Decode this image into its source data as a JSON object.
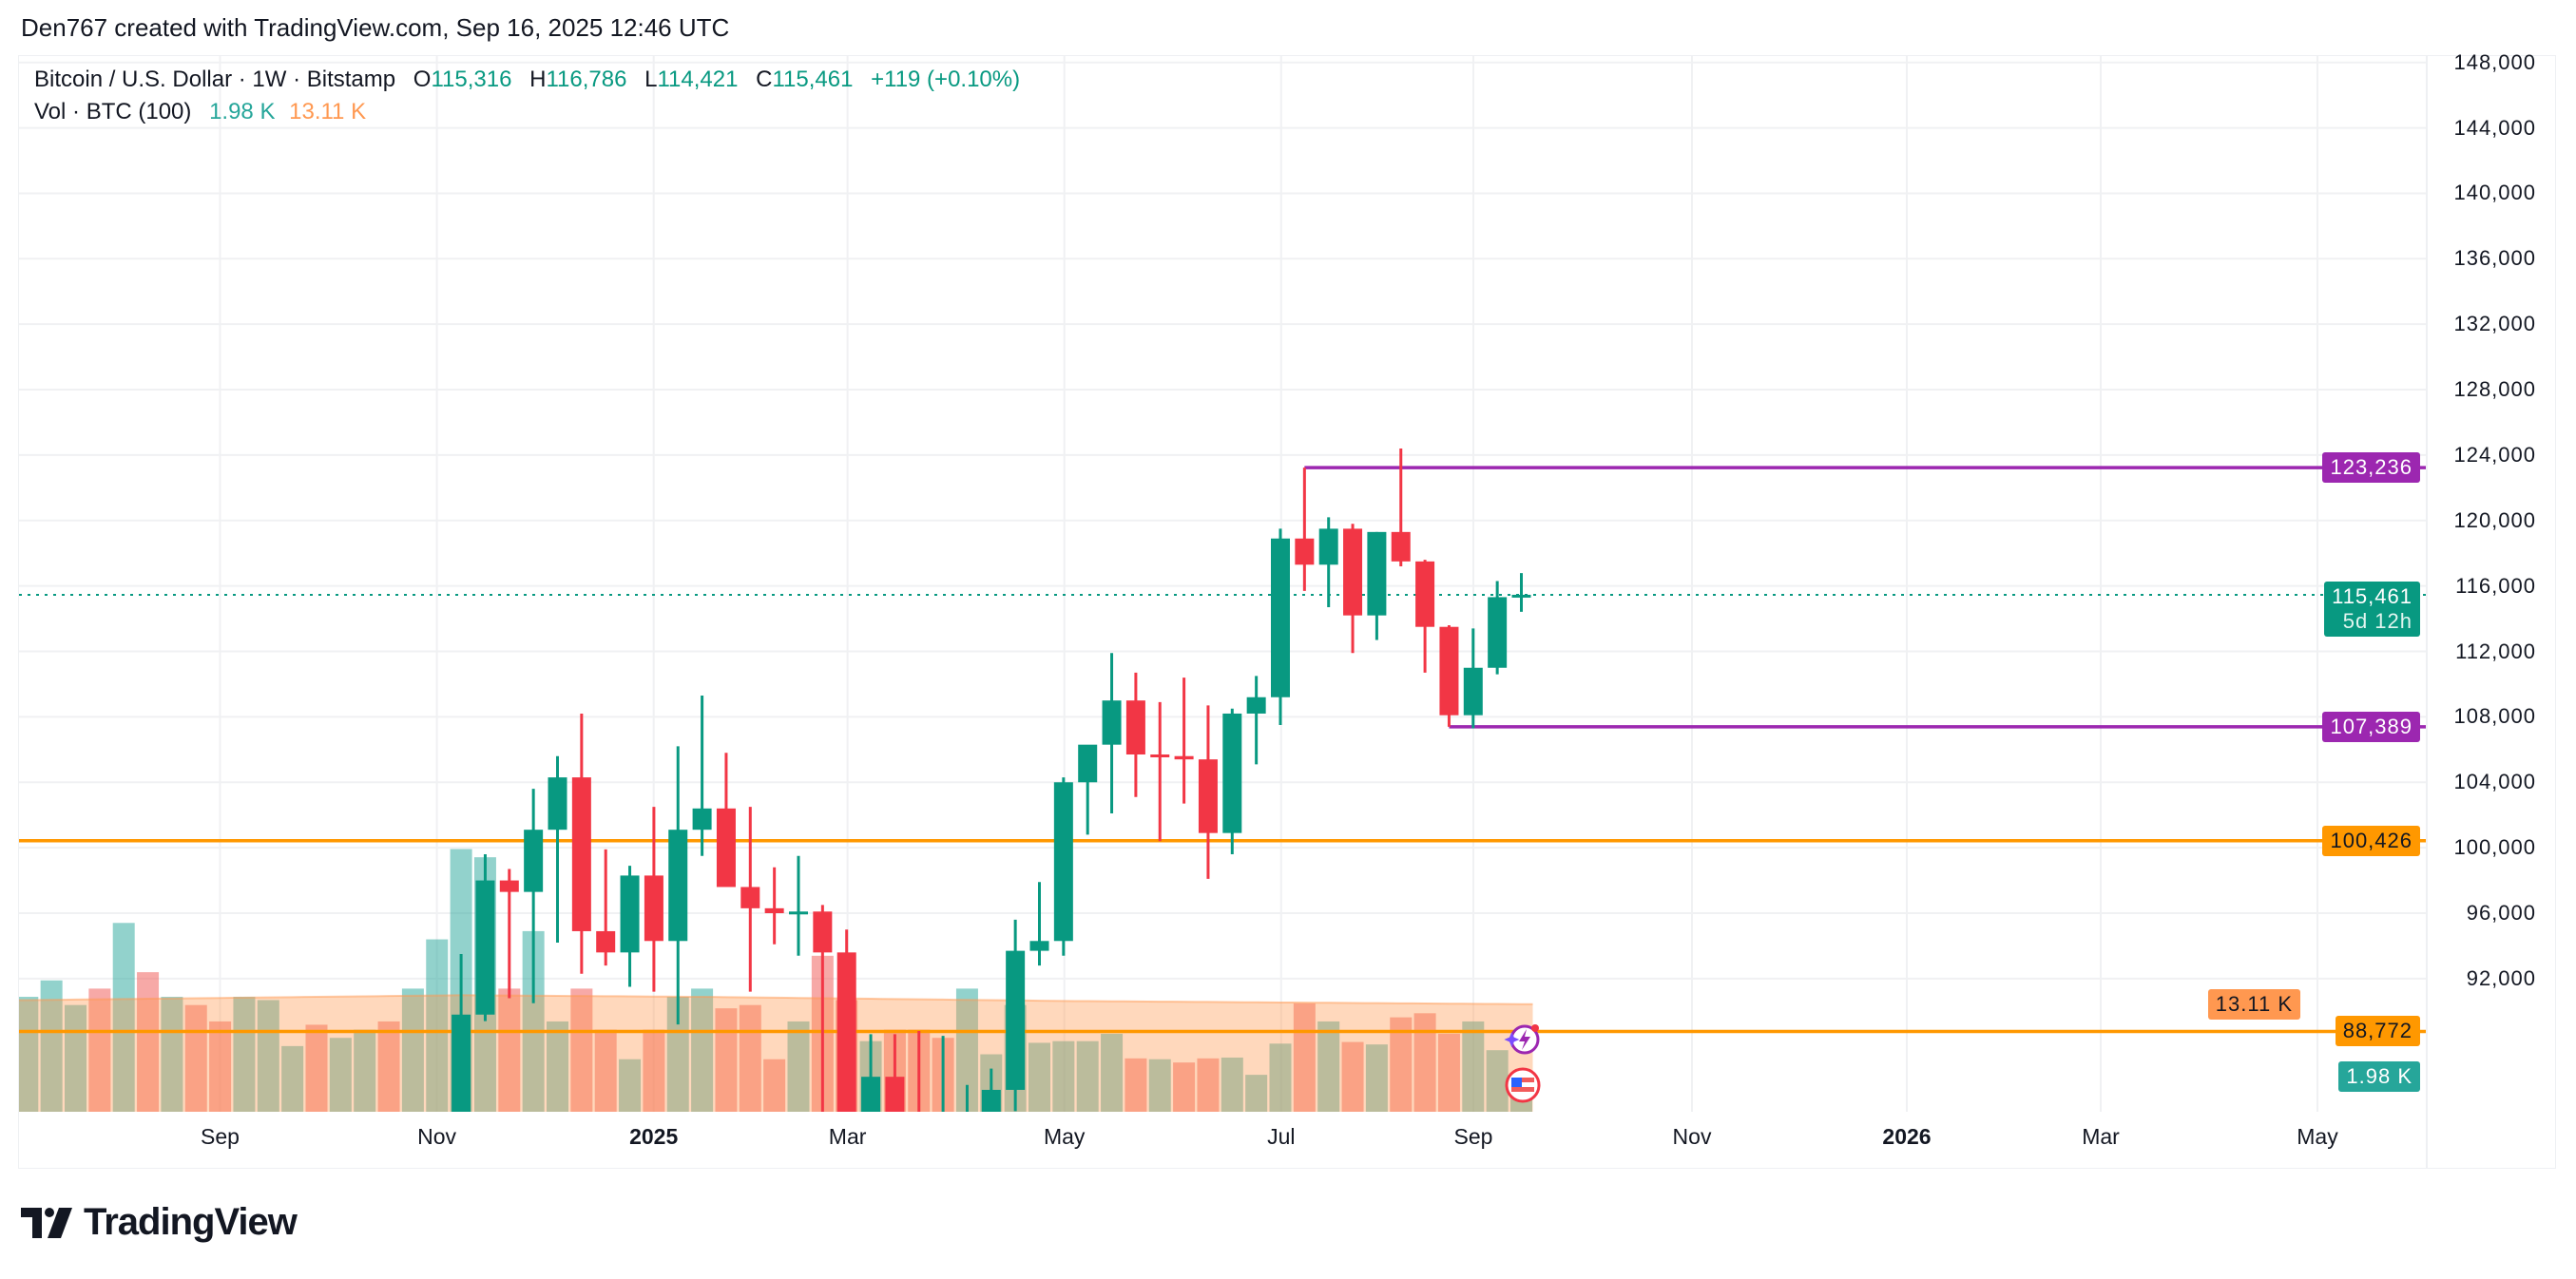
{
  "caption": "Den767 created with TradingView.com, Sep 16, 2025 12:46 UTC",
  "legend": {
    "symbol": "Bitcoin / U.S. Dollar · 1W · Bitstamp",
    "o_label": "O",
    "o": "115,316",
    "h_label": "H",
    "h": "116,786",
    "l_label": "L",
    "l": "114,421",
    "c_label": "C",
    "c": "115,461",
    "change": "+119 (+0.10%)",
    "vol_title": "Vol · BTC (100)",
    "vol": "1.98 K",
    "vol_ma": "13.11 K"
  },
  "price_axis": {
    "ticks": [
      "148,000",
      "144,000",
      "140,000",
      "136,000",
      "132,000",
      "128,000",
      "124,000",
      "120,000",
      "116,000",
      "112,000",
      "108,000",
      "104,000",
      "100,000",
      "96,000",
      "92,000"
    ],
    "labels": {
      "high_line": "123,236",
      "last_price": "115,461",
      "countdown": "5d 12h",
      "low_line": "107,389",
      "support_1": "100,426",
      "vol_ma": "13.11 K",
      "support_2": "88,772",
      "vol": "1.98 K"
    }
  },
  "time_axis": [
    "Sep",
    "Nov",
    "2025",
    "Mar",
    "May",
    "Jul",
    "Sep",
    "Nov",
    "2026",
    "Mar",
    "May"
  ],
  "logo": "TradingView",
  "colors": {
    "up": "#089981",
    "down": "#f23645",
    "purple": "#9c27b0",
    "orange": "#ff9800",
    "vol_ma": "#ff9850",
    "vol_up": "#26a69a",
    "vol_down": "#ef5350"
  },
  "chart_data": {
    "type": "candlestick",
    "interval": "1W",
    "price_range": [
      84000,
      148000
    ],
    "first_candle_week_index": 10,
    "candles_ohlc": [
      [
        80400,
        93500,
        80200,
        89800
      ],
      [
        89800,
        99600,
        89400,
        98000
      ],
      [
        98000,
        98700,
        90800,
        97300
      ],
      [
        97300,
        103600,
        90500,
        101100
      ],
      [
        101100,
        105600,
        94200,
        104300
      ],
      [
        104300,
        108200,
        92300,
        94900
      ],
      [
        94900,
        99900,
        92800,
        93600
      ],
      [
        93600,
        98900,
        91500,
        98300
      ],
      [
        98300,
        102500,
        91200,
        94300
      ],
      [
        94300,
        106200,
        89200,
        101100
      ],
      [
        101100,
        109300,
        99500,
        102400
      ],
      [
        102400,
        105800,
        97800,
        97600
      ],
      [
        97600,
        102500,
        91200,
        96300
      ],
      [
        96300,
        98800,
        94100,
        96000
      ],
      [
        96000,
        99500,
        93400,
        96100
      ],
      [
        96100,
        96500,
        78300,
        93600
      ],
      [
        93600,
        95000,
        81400,
        80700
      ],
      [
        80700,
        88600,
        76600,
        86000
      ],
      [
        86000,
        88600,
        81200,
        82600
      ],
      [
        82600,
        88800,
        81600,
        82400
      ],
      [
        82400,
        88500,
        81300,
        83400
      ],
      [
        83400,
        85500,
        74400,
        83800
      ],
      [
        83800,
        86500,
        83100,
        85200
      ],
      [
        85200,
        95600,
        83900,
        93700
      ],
      [
        93700,
        97900,
        92800,
        94300
      ],
      [
        94300,
        104300,
        93400,
        104000
      ],
      [
        104000,
        105800,
        100800,
        106300
      ],
      [
        106300,
        111900,
        102100,
        109000
      ],
      [
        109000,
        110700,
        103100,
        105700
      ],
      [
        105700,
        108900,
        100400,
        105600
      ],
      [
        105600,
        110400,
        102700,
        105400
      ],
      [
        105400,
        108700,
        98100,
        100900
      ],
      [
        100900,
        108500,
        99600,
        108200
      ],
      [
        108200,
        110500,
        105100,
        109200
      ],
      [
        109200,
        119500,
        107500,
        118900
      ],
      [
        118900,
        123236,
        115700,
        117300
      ],
      [
        117300,
        120200,
        114700,
        119500
      ],
      [
        119500,
        119800,
        111900,
        114200
      ],
      [
        114200,
        119300,
        112700,
        119300
      ],
      [
        119300,
        124400,
        117200,
        117500
      ],
      [
        117500,
        117600,
        110700,
        113500
      ],
      [
        113500,
        113600,
        107389,
        108100
      ],
      [
        108100,
        113400,
        107300,
        111000
      ],
      [
        111000,
        116300,
        110600,
        115316
      ],
      [
        115316,
        116786,
        114421,
        115461
      ]
    ],
    "volume_first_week_index": -8,
    "volume_k": [
      [
        14,
        "u"
      ],
      [
        16,
        "u"
      ],
      [
        13,
        "u"
      ],
      [
        15,
        "d"
      ],
      [
        23,
        "u"
      ],
      [
        17,
        "d"
      ],
      [
        14,
        "u"
      ],
      [
        13,
        "d"
      ],
      [
        11,
        "d"
      ],
      [
        14,
        "u"
      ],
      [
        13.6,
        "u"
      ],
      [
        8,
        "u"
      ],
      [
        10.6,
        "d"
      ],
      [
        9,
        "u"
      ],
      [
        10,
        "u"
      ],
      [
        11,
        "d"
      ],
      [
        15,
        "u"
      ],
      [
        21,
        "u"
      ],
      [
        32,
        "u"
      ],
      [
        31,
        "u"
      ],
      [
        15,
        "d"
      ],
      [
        22,
        "u"
      ],
      [
        11,
        "u"
      ],
      [
        15,
        "d"
      ],
      [
        10,
        "d"
      ],
      [
        6.4,
        "u"
      ],
      [
        10,
        "d"
      ],
      [
        14,
        "u"
      ],
      [
        15,
        "u"
      ],
      [
        12.6,
        "d"
      ],
      [
        13,
        "d"
      ],
      [
        6.4,
        "d"
      ],
      [
        11,
        "u"
      ],
      [
        19,
        "d"
      ],
      [
        13.6,
        "d"
      ],
      [
        8.6,
        "u"
      ],
      [
        10,
        "d"
      ],
      [
        10,
        "d"
      ],
      [
        9,
        "d"
      ],
      [
        15,
        "u"
      ],
      [
        7,
        "u"
      ],
      [
        13,
        "u"
      ],
      [
        8.4,
        "u"
      ],
      [
        8.6,
        "u"
      ],
      [
        8.6,
        "u"
      ],
      [
        9.5,
        "u"
      ],
      [
        6.5,
        "d"
      ],
      [
        6.4,
        "u"
      ],
      [
        6,
        "d"
      ],
      [
        6.5,
        "d"
      ],
      [
        6.6,
        "u"
      ],
      [
        4.5,
        "u"
      ],
      [
        8.3,
        "u"
      ],
      [
        13.2,
        "d"
      ],
      [
        11,
        "u"
      ],
      [
        8.5,
        "d"
      ],
      [
        8.2,
        "u"
      ],
      [
        11.5,
        "d"
      ],
      [
        12,
        "d"
      ],
      [
        9.5,
        "d"
      ],
      [
        11,
        "u"
      ],
      [
        7.5,
        "u"
      ],
      [
        1.98,
        "u"
      ]
    ],
    "volume_ma_k_anchors": [
      [
        -8,
        13.6
      ],
      [
        10,
        14.2
      ],
      [
        20,
        14.0
      ],
      [
        35,
        13.5
      ],
      [
        54,
        13.11
      ]
    ],
    "horizontal_lines": [
      {
        "price": 123236,
        "from_week": 45,
        "color": "purple"
      },
      {
        "price": 107389,
        "from_week": 51,
        "color": "purple"
      },
      {
        "price": 100426,
        "from_week": null,
        "color": "orange"
      },
      {
        "price": 88772,
        "from_week": null,
        "color": "orange"
      }
    ],
    "last_price": 115461
  }
}
